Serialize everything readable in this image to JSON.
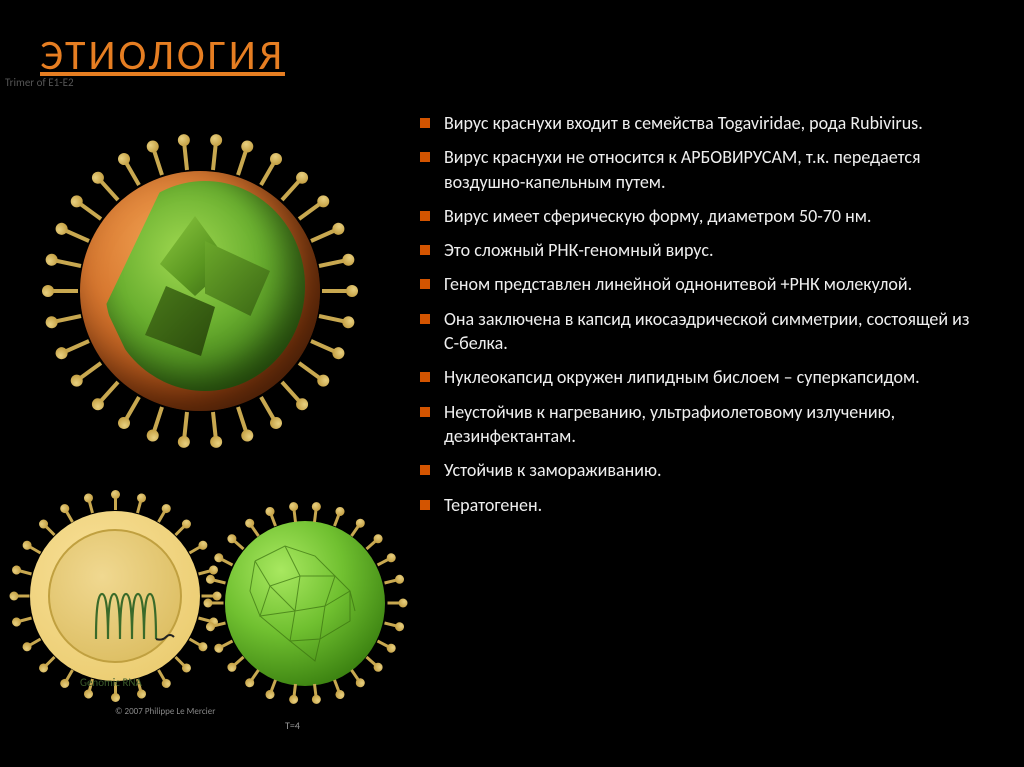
{
  "title": "ЭТИОЛОГИЯ",
  "title_color": "#e67e22",
  "bullet_color": "#d35400",
  "background": "#000000",
  "text_color": "#efefef",
  "bullets": [
    "Вирус краснухи входит в  семейства Togaviridae, рода Rubivirus.",
    "Вирус краснухи не относится к АРБОВИРУСАМ, т.к. передается воздушно-капельным путем.",
    "Вирус  имеет сферическую форму, диаметром 50-70 нм.",
    "Это сложный РНК-геномный вирус.",
    "Геном представлен линейной однонитевой +РНК молекулой.",
    "Она заключена в капсид икосаэдрической симметрии, состоящей из С-белка.",
    "Нуклеокапсид окружен липидным бислоем – суперкапсидом.",
    " Неустойчив к нагреванию, ультрафиолетовому излучению, дезинфектантам.",
    "Устойчив к замораживанию.",
    "Тератогенен."
  ],
  "diagram_labels": {
    "trimer": "Trimer of E1-E2",
    "genomic_rna": "Genomic RNA",
    "t4": "T=4",
    "copyright": "© 2007 Philippe Le Mercier"
  },
  "virus_colors": {
    "envelope_outer": "#d87830",
    "envelope_shadow": "#6b2a08",
    "capsid_light": "#9fd850",
    "capsid_dark": "#3a7515",
    "spike_stem": "#c8a850",
    "spike_head": "#e8d080",
    "cream_outer": "#e8c868",
    "cream_inner": "#d8b858"
  },
  "typography": {
    "title_fontsize": 42,
    "bullet_fontsize": 18,
    "label_fontsize": 11
  }
}
